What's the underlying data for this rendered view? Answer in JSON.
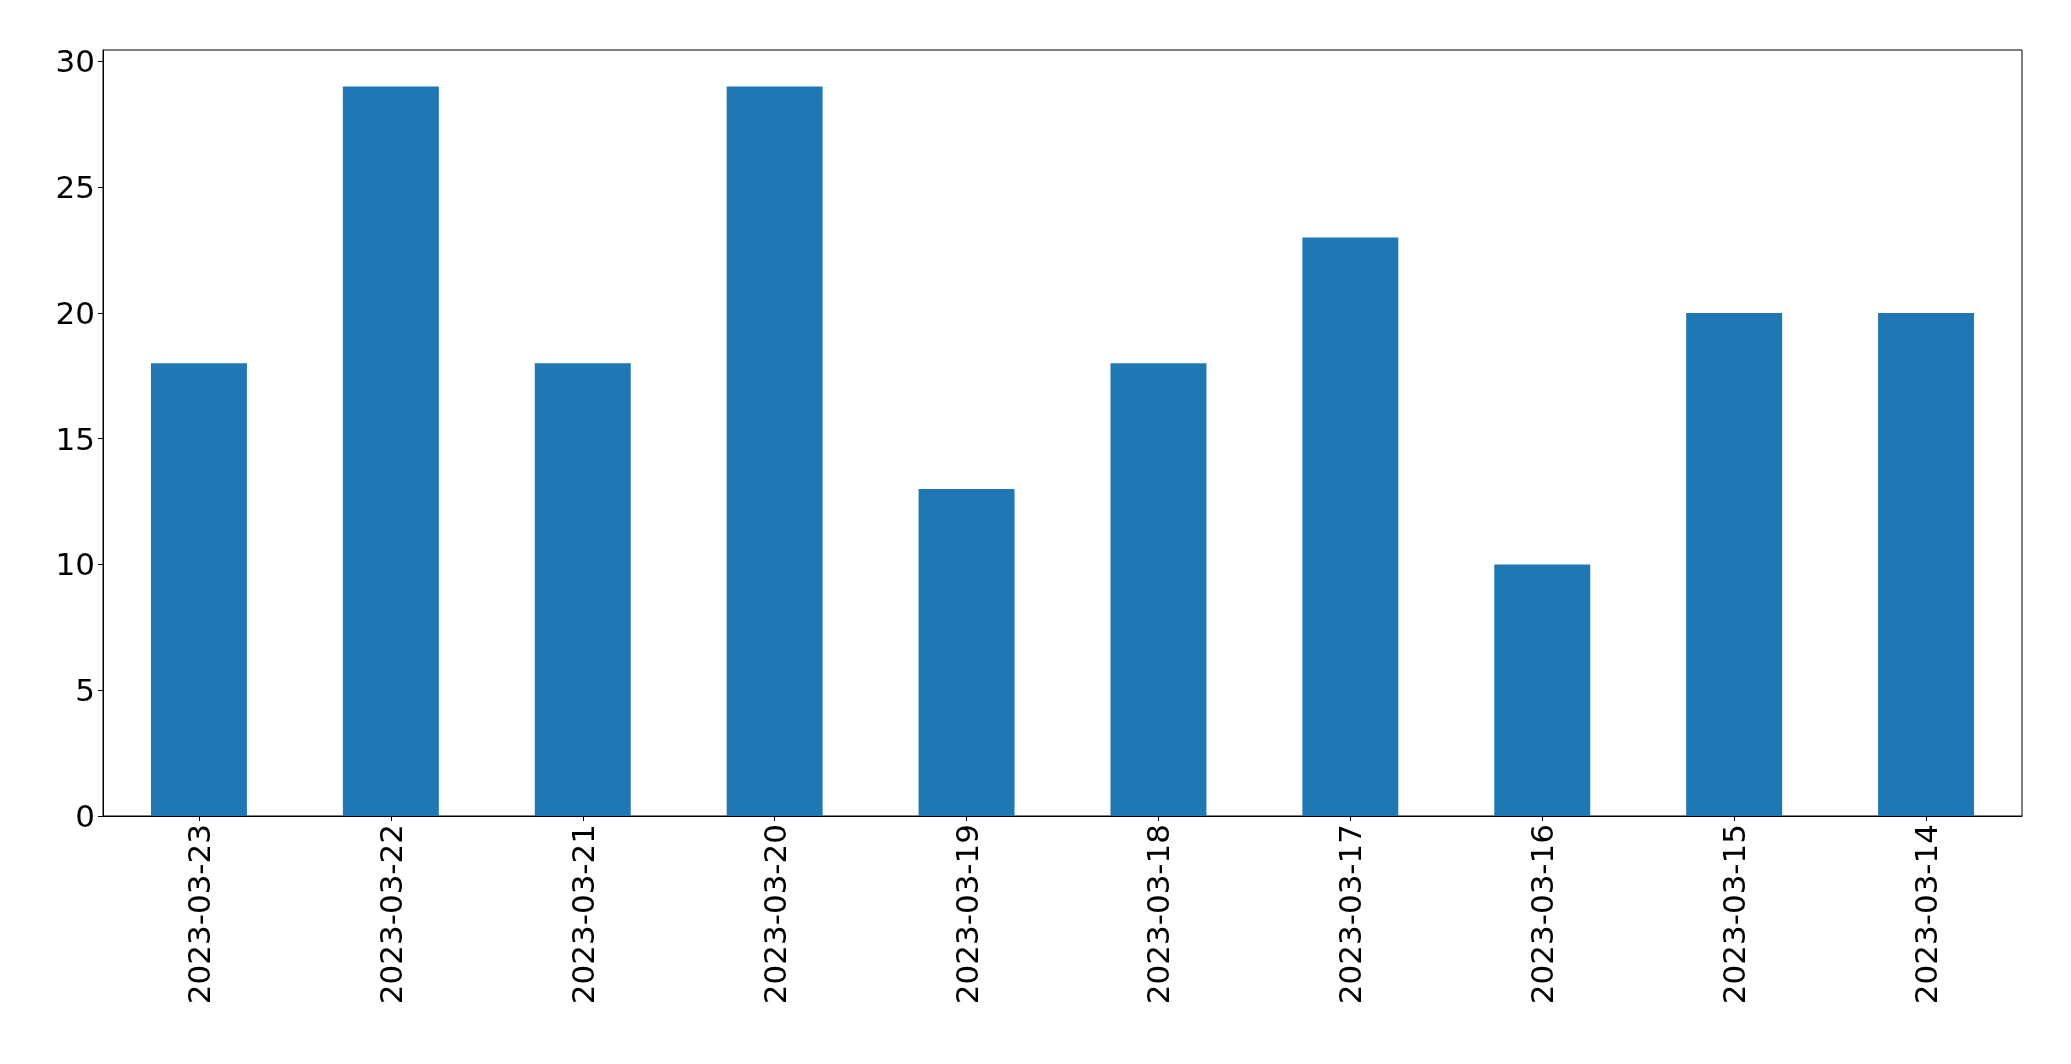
{
  "chart_data": {
    "type": "bar",
    "categories": [
      "2023-03-23",
      "2023-03-22",
      "2023-03-21",
      "2023-03-20",
      "2023-03-19",
      "2023-03-18",
      "2023-03-17",
      "2023-03-16",
      "2023-03-15",
      "2023-03-14"
    ],
    "values": [
      18,
      29,
      18,
      29,
      13,
      18,
      23,
      10,
      20,
      20
    ],
    "color": "#1f77b4",
    "ylim": [
      0,
      30.45
    ],
    "yticks": [
      0,
      5,
      10,
      15,
      20,
      25,
      30
    ],
    "grid": false
  }
}
